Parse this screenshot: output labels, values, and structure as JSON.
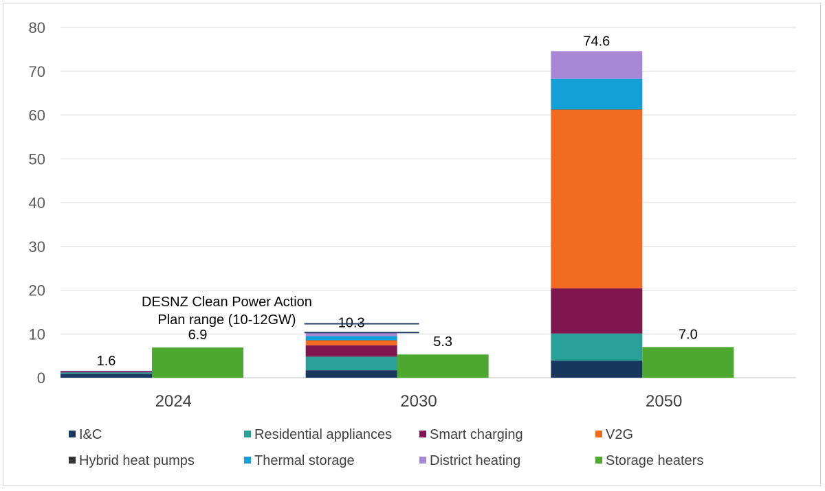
{
  "chart_data": {
    "type": "bar",
    "stacked": true,
    "categories": [
      "2024",
      "2030",
      "2050"
    ],
    "ylim": [
      0,
      80
    ],
    "yticks": [
      0,
      10,
      20,
      30,
      40,
      50,
      60,
      70,
      80
    ],
    "grid": true,
    "legend_position": "bottom",
    "flex_stack": {
      "series": [
        {
          "name": "I&C",
          "color": "#17375e",
          "values": [
            0.9,
            1.7,
            3.9
          ]
        },
        {
          "name": "Residential appliances",
          "color": "#2aa198",
          "values": [
            0.3,
            3.1,
            6.2
          ]
        },
        {
          "name": "Smart charging",
          "color": "#7f1650",
          "values": [
            0.3,
            2.6,
            10.3
          ]
        },
        {
          "name": "V2G",
          "color": "#f26b21",
          "values": [
            0.0,
            1.1,
            40.8
          ]
        },
        {
          "name": "Hybrid heat pumps",
          "color": "#333333",
          "values": [
            0.0,
            0.1,
            0.1
          ]
        },
        {
          "name": "Thermal storage",
          "color": "#12a0d7",
          "values": [
            0.0,
            0.9,
            7.0
          ]
        },
        {
          "name": "District heating",
          "color": "#a787d6",
          "values": [
            0.1,
            0.8,
            6.3
          ]
        }
      ],
      "totals": [
        "1.6",
        "10.3",
        "74.6"
      ]
    },
    "storage_heaters": {
      "name": "Storage heaters",
      "color": "#4ea72e",
      "values": [
        6.9,
        5.3,
        7.0
      ],
      "labels": [
        "6.9",
        "5.3",
        "7.0"
      ]
    },
    "annotation": {
      "lines": [
        "DESNZ Clean Power Action",
        "Plan range (10-12GW)"
      ],
      "range": [
        10,
        12
      ],
      "category": "2030",
      "color": "#1f3864"
    },
    "legend": [
      {
        "label": "I&C",
        "color": "#17375e"
      },
      {
        "label": "Residential appliances",
        "color": "#2aa198"
      },
      {
        "label": "Smart charging",
        "color": "#7f1650"
      },
      {
        "label": "V2G",
        "color": "#f26b21"
      },
      {
        "label": "Hybrid heat pumps",
        "color": "#333333"
      },
      {
        "label": "Thermal storage",
        "color": "#12a0d7"
      },
      {
        "label": "District heating",
        "color": "#a787d6"
      },
      {
        "label": "Storage heaters",
        "color": "#4ea72e"
      }
    ]
  }
}
